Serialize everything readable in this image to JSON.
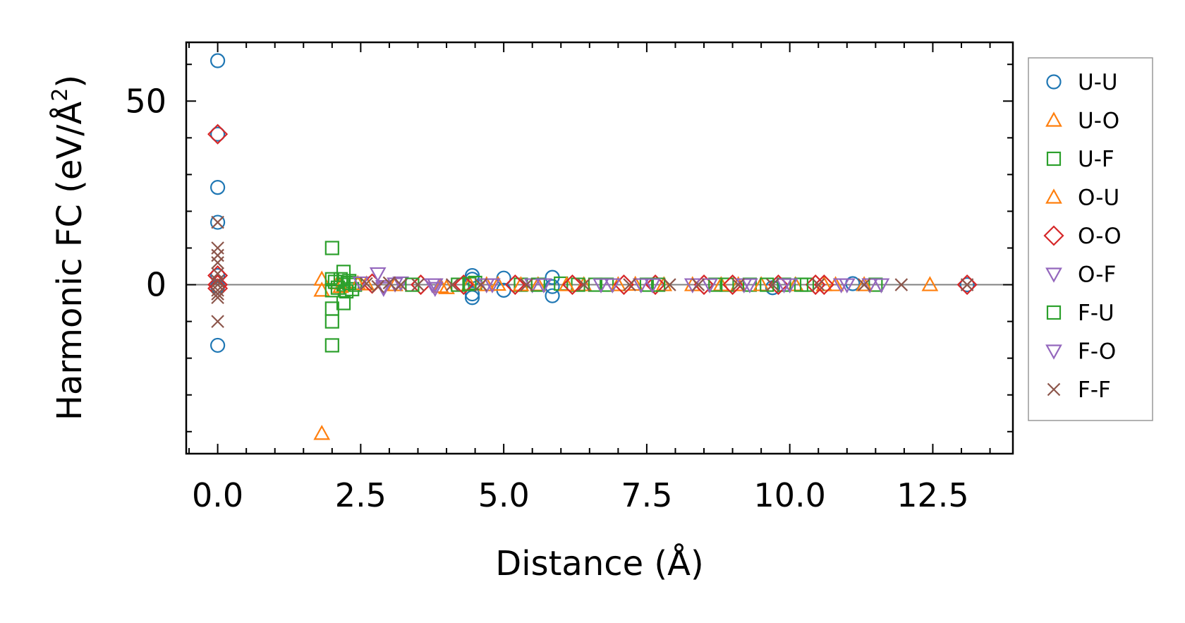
{
  "chart_data": {
    "type": "scatter",
    "title": "",
    "xlabel": "Distance (Å)",
    "ylabel": "Harmonic FC (eV/Å²)",
    "ylabel_main": "Harmonic FC (eV/Å",
    "ylabel_sup": "2",
    "ylabel_end": ")",
    "xlim": [
      -0.55,
      13.9
    ],
    "ylim": [
      -46,
      66
    ],
    "xticks": [
      0.0,
      2.5,
      5.0,
      7.5,
      10.0,
      12.5
    ],
    "xtick_labels": [
      "0.0",
      "2.5",
      "5.0",
      "7.5",
      "10.0",
      "12.5"
    ],
    "yticks": [
      0,
      50
    ],
    "ytick_labels": [
      "0",
      "50"
    ],
    "reference_line_y": 0,
    "legend_position": "outside-right",
    "series": [
      {
        "name": "U-U",
        "marker": "circle",
        "color": "#1f77b4",
        "x": [
          0,
          0,
          0,
          0,
          0,
          0,
          0,
          4.45,
          4.45,
          4.45,
          4.45,
          5.0,
          5.0,
          5.85,
          5.85,
          5.85,
          9.7,
          11.1,
          13.1
        ],
        "y": [
          61,
          41,
          26.5,
          17,
          2.5,
          -0.5,
          -16.5,
          2.5,
          1.5,
          -2.5,
          -3.5,
          1.8,
          -1.5,
          2,
          -0.5,
          -3,
          -0.8,
          0.3,
          0
        ]
      },
      {
        "name": "U-O",
        "marker": "triangle-up",
        "color": "#ff7f0e",
        "x": [
          1.82,
          1.82,
          1.82,
          2.1,
          2.6,
          3.1,
          4.0,
          4.4,
          4.9,
          5.6,
          6.4,
          7.3,
          8.3,
          9.1,
          10.1,
          10.8,
          12.45
        ],
        "y": [
          1.5,
          -1.5,
          -40.5,
          0.5,
          0.2,
          0,
          -0.8,
          0.2,
          0.1,
          0,
          0,
          0.1,
          0,
          0,
          0,
          0,
          0
        ]
      },
      {
        "name": "U-F",
        "marker": "square",
        "color": "#2ca02c",
        "x": [
          2.0,
          2.0,
          2.0,
          2.0,
          2.0,
          2.0,
          2.2,
          2.2,
          2.2,
          2.3,
          2.35,
          2.4,
          4.2,
          4.5,
          5.3,
          6.0,
          6.3,
          6.8,
          7.5,
          8.9,
          9.3,
          9.9,
          10.3,
          11.5
        ],
        "y": [
          10,
          -6.5,
          -10,
          -16.5,
          1.5,
          -1.5,
          3.5,
          0,
          -5,
          1,
          -1.2,
          0,
          0,
          0.5,
          0,
          0.3,
          0,
          0,
          0,
          0,
          0,
          0,
          0,
          0
        ]
      },
      {
        "name": "O-U",
        "marker": "triangle-up",
        "color": "#ff7f0e",
        "x": [
          2.15,
          2.45,
          3.9,
          4.7,
          5.3,
          6.1,
          7.0,
          7.8,
          8.8,
          9.5,
          10.6,
          11.3
        ],
        "y": [
          -0.5,
          0.3,
          -0.5,
          0,
          0,
          0,
          0,
          0,
          0,
          0,
          0,
          0
        ]
      },
      {
        "name": "O-O",
        "marker": "diamond",
        "color": "#d62728",
        "x": [
          0,
          0,
          0,
          0,
          2.7,
          3.55,
          4.3,
          5.2,
          6.2,
          7.1,
          7.65,
          8.5,
          9.0,
          9.8,
          10.45,
          10.6,
          13.1
        ],
        "y": [
          41,
          2.5,
          0,
          -1,
          0.3,
          0,
          0,
          0,
          0,
          0,
          0,
          0,
          0,
          0,
          0,
          0,
          0
        ]
      },
      {
        "name": "O-F",
        "marker": "triangle-down",
        "color": "#9467bd",
        "x": [
          2.8,
          2.9,
          3.2,
          3.75,
          3.8,
          4.8,
          5.5,
          6.9,
          7.4,
          8.3,
          9.2,
          9.9,
          10.9,
          11.6
        ],
        "y": [
          3,
          -1,
          0.5,
          0,
          -1,
          0,
          0,
          0,
          0,
          0,
          0,
          0,
          0,
          0
        ]
      },
      {
        "name": "F-U",
        "marker": "square",
        "color": "#2ca02c",
        "x": [
          2.05,
          2.1,
          2.15,
          2.25,
          2.3,
          3.4,
          4.4,
          5.6,
          6.6,
          7.7,
          8.7,
          9.6,
          10.2
        ],
        "y": [
          0.8,
          -0.8,
          1.5,
          -1.8,
          0.5,
          0,
          0.2,
          0,
          0,
          0,
          0,
          0,
          0
        ]
      },
      {
        "name": "F-O",
        "marker": "triangle-down",
        "color": "#9467bd",
        "x": [
          2.5,
          2.9,
          3.1,
          3.8,
          4.7,
          5.7,
          6.7,
          7.6,
          8.6,
          9.3,
          10.0,
          11.0,
          11.4
        ],
        "y": [
          0.5,
          -0.5,
          0.2,
          0,
          0,
          0,
          0,
          0,
          0,
          0,
          0,
          0,
          0
        ]
      },
      {
        "name": "F-F",
        "marker": "x",
        "color": "#8c564b",
        "x": [
          0,
          0,
          0,
          0,
          0,
          0,
          0,
          0,
          0,
          0,
          0,
          2.6,
          2.8,
          3.0,
          3.2,
          3.5,
          4.1,
          4.6,
          5.4,
          6.4,
          7.2,
          7.9,
          8.4,
          9.1,
          9.7,
          10.5,
          11.3,
          11.95,
          13.1
        ],
        "y": [
          17,
          10,
          8,
          6,
          3,
          1,
          0,
          -1.5,
          -2.5,
          -3.5,
          -10,
          0.3,
          -0.5,
          0.5,
          0,
          0,
          0,
          0,
          0,
          0,
          0,
          0,
          0,
          0,
          0,
          0,
          0,
          0,
          0
        ]
      }
    ]
  }
}
